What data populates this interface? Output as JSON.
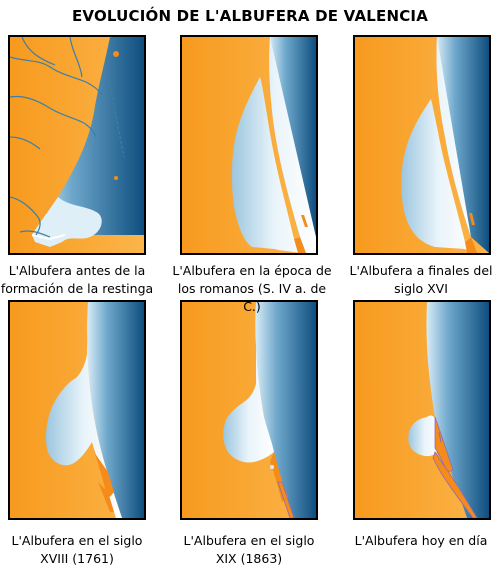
{
  "title": "EVOLUCIÓN DE L'ALBUFERA DE VALENCIA",
  "colors": {
    "land": "#f79a1e",
    "land_light": "#fbb54a",
    "sea_dark": "#0e4e7f",
    "sea_light": "#d8ecf6",
    "lagoon": "#e9f4fa",
    "river": "#3d7fa6",
    "sand": "#f48b1a"
  },
  "panels": [
    {
      "id": "prerestinga",
      "caption_line1": "L'Albufera antes de la",
      "caption_line2": "formación de la restinga"
    },
    {
      "id": "romanos",
      "caption_line1": "L'Albufera en la época de",
      "caption_line2": "los romanos (S. IV a. de C.)"
    },
    {
      "id": "siglo-xvi",
      "caption_line1": "L'Albufera a finales del",
      "caption_line2": "siglo XVI"
    },
    {
      "id": "siglo-xviii",
      "caption_line1": "L'Albufera en el siglo",
      "caption_line2": "XVIII (1761)"
    },
    {
      "id": "siglo-xix",
      "caption_line1": "L'Albufera en el siglo",
      "caption_line2": "XIX (1863)"
    },
    {
      "id": "hoy",
      "caption_line1": "L'Albufera hoy en día",
      "caption_line2": ""
    }
  ]
}
